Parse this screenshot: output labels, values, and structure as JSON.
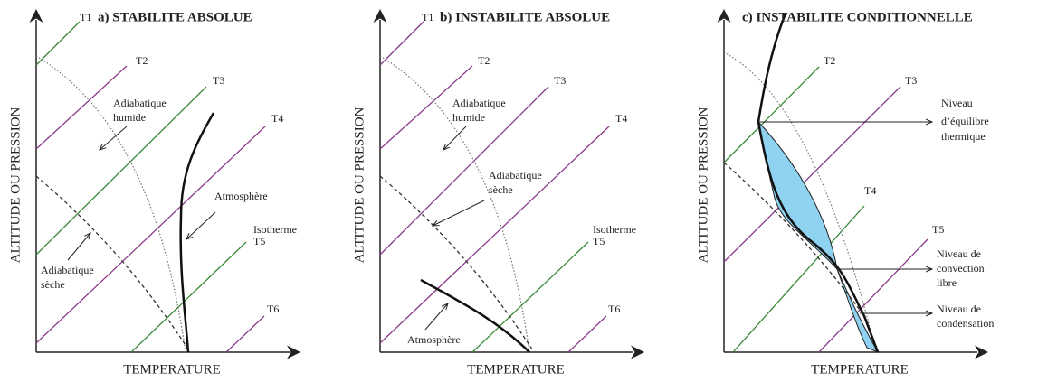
{
  "panels": [
    {
      "title": "a) STABILITE ABSOLUE",
      "y_axis": "ALTITUDE OU PRESSION",
      "x_axis": "TEMPERATURE",
      "isotherms": [
        "T1",
        "T2",
        "T3",
        "T4",
        "T5",
        "T6"
      ],
      "annotations": [
        [
          "Adiabatique",
          "humide"
        ],
        [
          "Atmosphère"
        ],
        [
          "Isotherme"
        ],
        [
          "Adiabatique",
          "sèche"
        ]
      ]
    },
    {
      "title": "b) INSTABILITE ABSOLUE",
      "y_axis": "ALTITUDE OU PRESSION",
      "x_axis": "TEMPERATURE",
      "isotherms": [
        "T1",
        "T2",
        "T3",
        "T4",
        "T5",
        "T6"
      ],
      "annotations": [
        [
          "Adiabatique",
          "humide"
        ],
        [
          "Adiabatique",
          "sèche"
        ],
        [
          "Isotherme"
        ],
        [
          "Atmosphère"
        ]
      ]
    },
    {
      "title": "c) INSTABILITE CONDITIONNELLE",
      "y_axis": "ALTITUDE OU PRESSION",
      "x_axis": "TEMPERATURE",
      "isotherms": [
        "T2",
        "T3",
        "T4",
        "T5"
      ],
      "annotations": [
        [
          "Niveau",
          "d’équilibre",
          "thermique"
        ],
        [
          "Niveau de",
          "convection",
          "libre"
        ],
        [
          "Niveau de",
          "condensation"
        ]
      ]
    }
  ]
}
